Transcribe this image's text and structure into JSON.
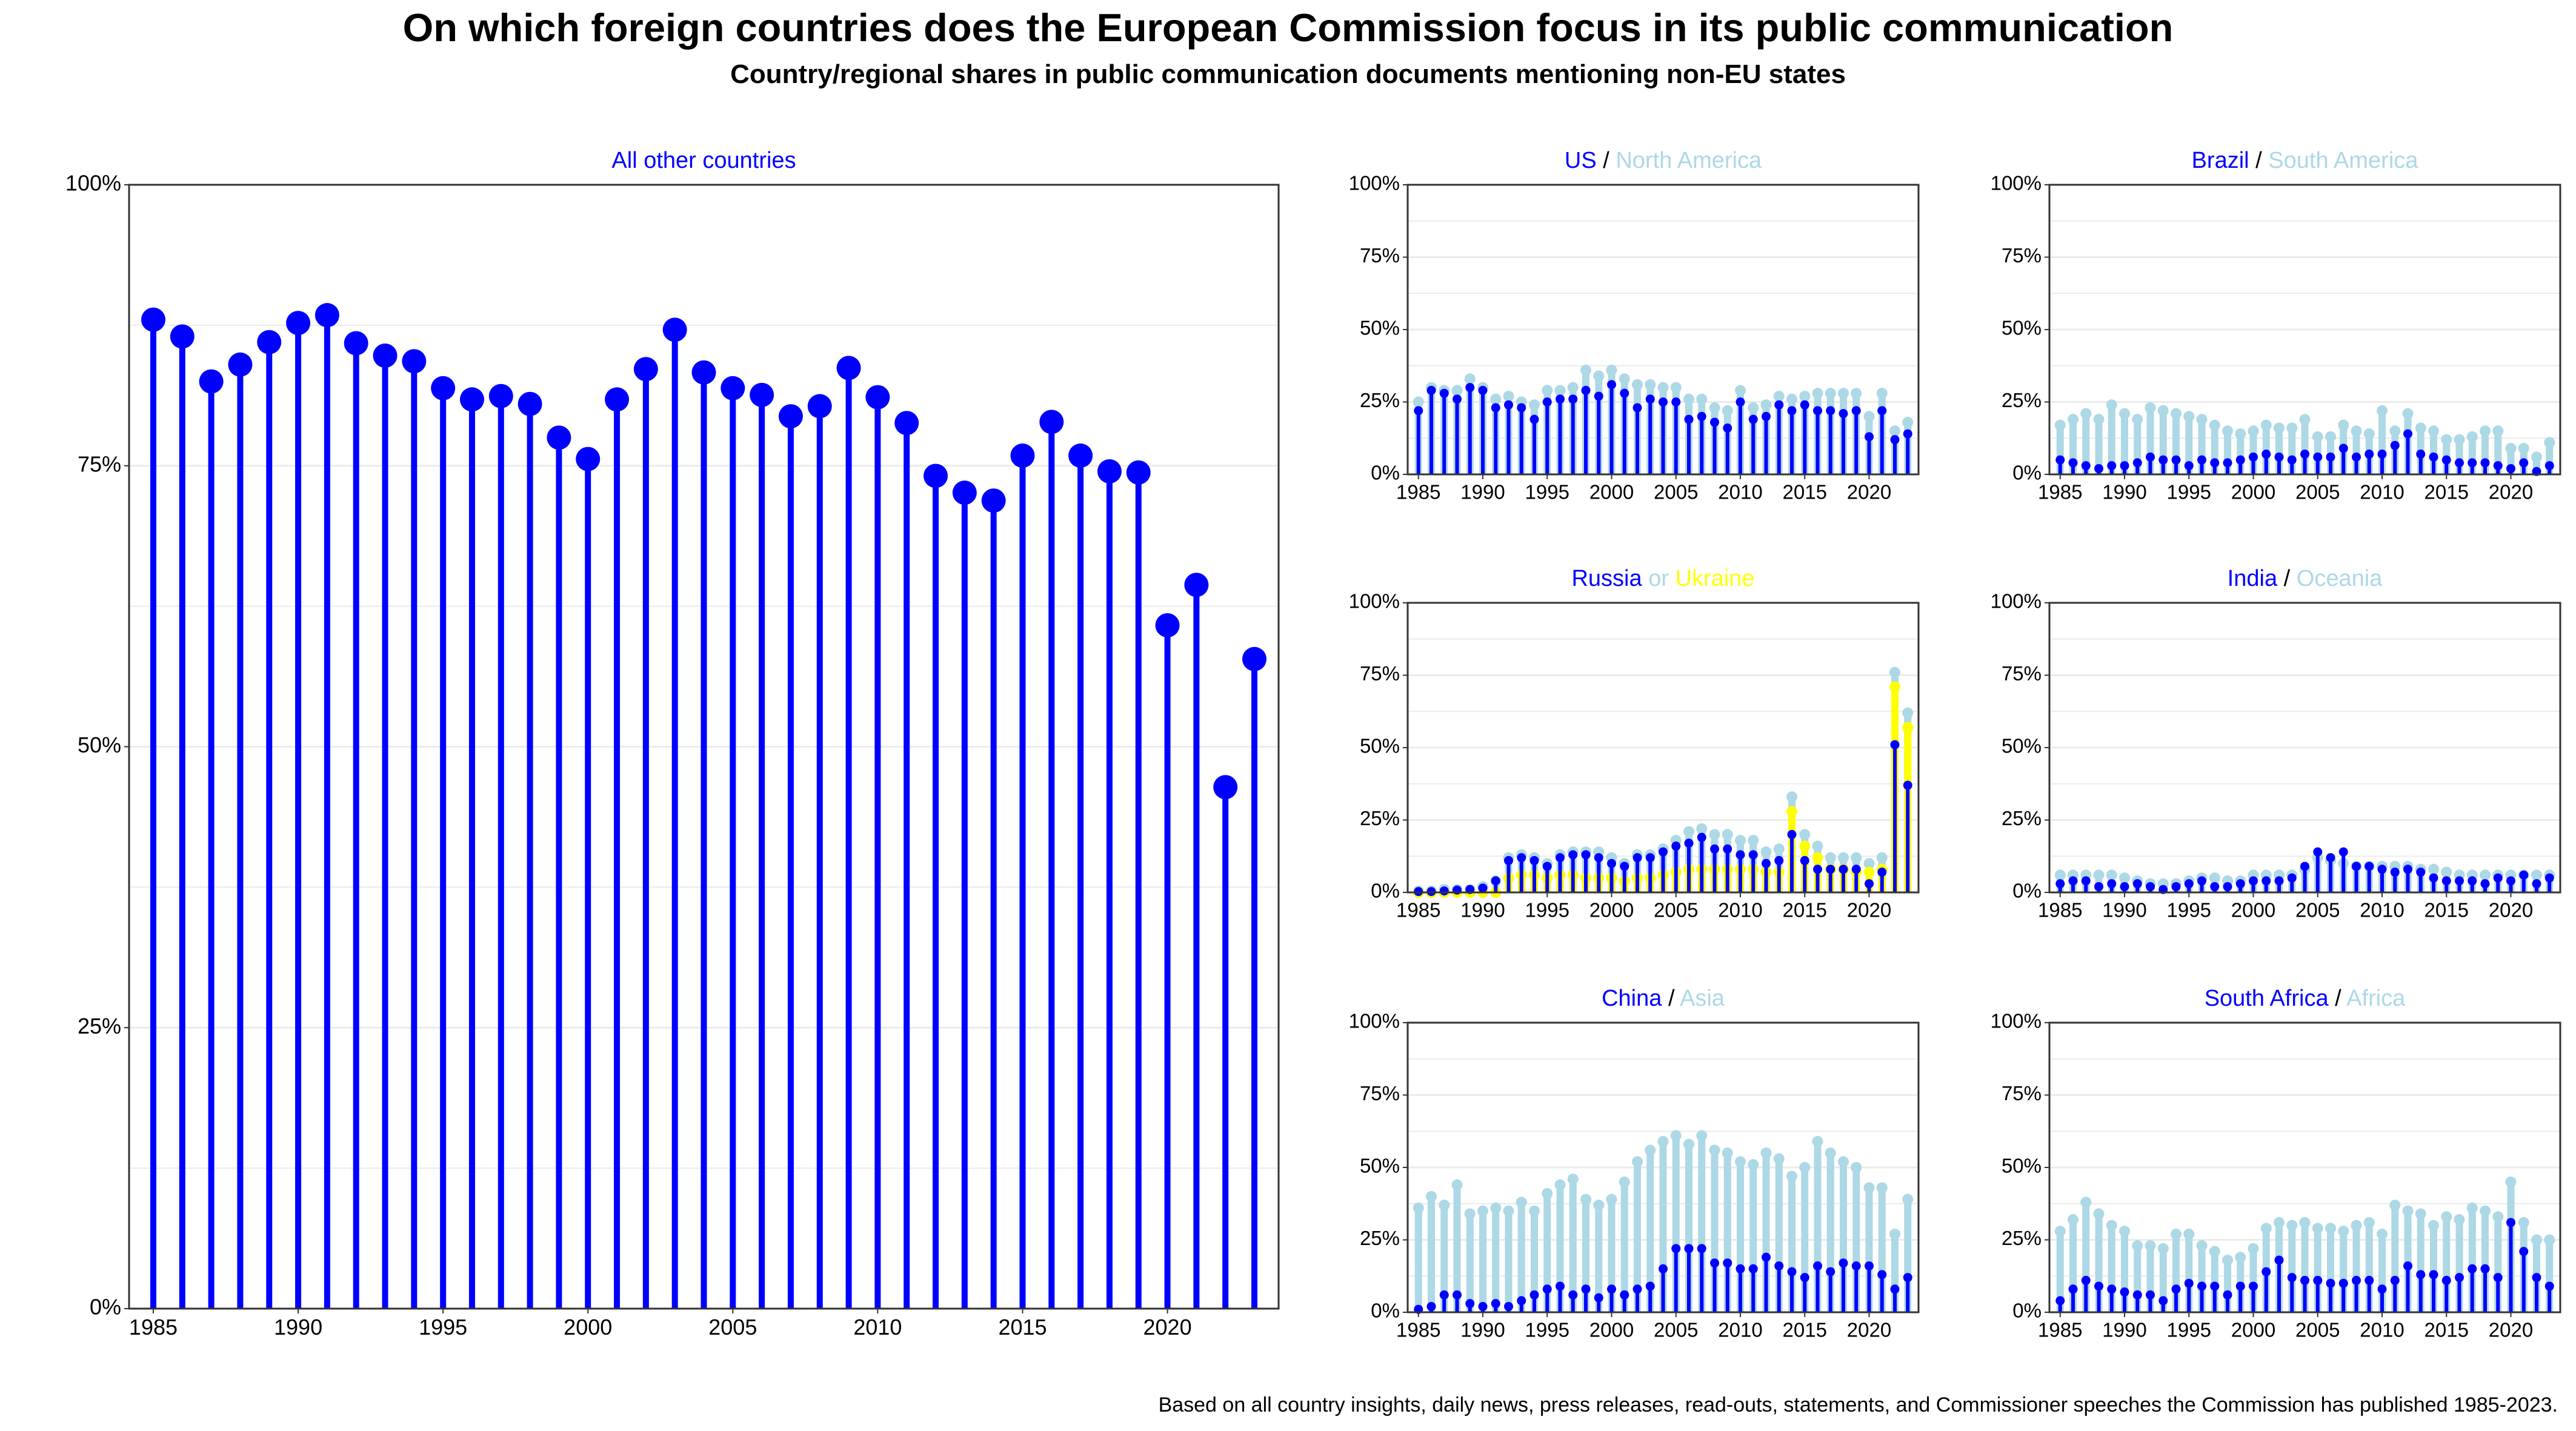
{
  "title": "On which foreign countries does the European Commission focus in its public communication",
  "subtitle": "Country/regional shares in public communication documents mentioning non-EU states",
  "caption": "Based on all country insights, daily news, press releases, read-outs, statements, and Commissioner speeches the Commission has published 1985-2023.",
  "colors": {
    "country": "#0000ff",
    "region": "#add8e6",
    "ukraine": "#ffff00",
    "grid": "#ebebeb",
    "frame": "#333333"
  },
  "chart_data": [
    {
      "type": "lollipop",
      "panel": "all-other",
      "title_parts": [
        {
          "text": "All other countries",
          "color": "#0000ff"
        }
      ],
      "x": [
        1985,
        1986,
        1987,
        1988,
        1989,
        1990,
        1991,
        1992,
        1993,
        1994,
        1995,
        1996,
        1997,
        1998,
        1999,
        2000,
        2001,
        2002,
        2003,
        2004,
        2005,
        2006,
        2007,
        2008,
        2009,
        2010,
        2011,
        2012,
        2013,
        2014,
        2015,
        2016,
        2017,
        2018,
        2019,
        2020,
        2021,
        2022,
        2023
      ],
      "x_ticks": [
        1985,
        1990,
        1995,
        2000,
        2005,
        2010,
        2015,
        2020
      ],
      "y_ticks": [
        0,
        25,
        50,
        75,
        100
      ],
      "y_tick_labels": [
        "0%",
        "25%",
        "50%",
        "75%",
        "100%"
      ],
      "ylim": [
        0,
        100
      ],
      "series": [
        {
          "name": "All other countries",
          "color": "#0000ff",
          "values": [
            88,
            86.5,
            82.5,
            84,
            86,
            87.7,
            88.4,
            85.9,
            84.8,
            84.3,
            81.9,
            80.9,
            81.2,
            80.5,
            77.5,
            75.6,
            80.9,
            83.6,
            87.1,
            83.3,
            81.9,
            81.3,
            79.4,
            80.3,
            83.7,
            81.1,
            78.8,
            74.1,
            72.6,
            71.9,
            75.9,
            78.9,
            75.9,
            74.5,
            74.4,
            60.8,
            64.4,
            46.4,
            57.8
          ]
        }
      ]
    },
    {
      "type": "lollipop",
      "panel": "us-north-america",
      "title_parts": [
        {
          "text": "US",
          "color": "#0000ff"
        },
        {
          "text": " / ",
          "color": "#000000"
        },
        {
          "text": "North America",
          "color": "#add8e6"
        }
      ],
      "x": [
        1985,
        1986,
        1987,
        1988,
        1989,
        1990,
        1991,
        1992,
        1993,
        1994,
        1995,
        1996,
        1997,
        1998,
        1999,
        2000,
        2001,
        2002,
        2003,
        2004,
        2005,
        2006,
        2007,
        2008,
        2009,
        2010,
        2011,
        2012,
        2013,
        2014,
        2015,
        2016,
        2017,
        2018,
        2019,
        2020,
        2021,
        2022,
        2023
      ],
      "x_ticks": [
        1985,
        1990,
        1995,
        2000,
        2005,
        2010,
        2015,
        2020
      ],
      "y_ticks": [
        0,
        25,
        50,
        75,
        100
      ],
      "y_tick_labels": [
        "0%",
        "25%",
        "50%",
        "75%",
        "100%"
      ],
      "ylim": [
        0,
        100
      ],
      "series": [
        {
          "name": "North America",
          "color": "#add8e6",
          "values": [
            25,
            30,
            29,
            29,
            33,
            30,
            26,
            27,
            25,
            24,
            29,
            29,
            30,
            36,
            34,
            36,
            33,
            31,
            31,
            30,
            30,
            26,
            26,
            23,
            22,
            29,
            23,
            24,
            27,
            26,
            27,
            28,
            28,
            28,
            28,
            20,
            28,
            15,
            18
          ]
        },
        {
          "name": "US",
          "color": "#0000ff",
          "values": [
            22,
            29,
            28,
            26,
            30,
            29,
            23,
            24,
            23,
            19,
            25,
            26,
            26,
            29,
            27,
            31,
            28,
            23,
            26,
            25,
            25,
            19,
            20,
            18,
            16,
            25,
            19,
            20,
            24,
            22,
            24,
            22,
            22,
            21,
            22,
            13,
            22,
            12,
            14
          ]
        }
      ]
    },
    {
      "type": "lollipop",
      "panel": "brazil-south-america",
      "title_parts": [
        {
          "text": "Brazil",
          "color": "#0000ff"
        },
        {
          "text": " / ",
          "color": "#000000"
        },
        {
          "text": "South America",
          "color": "#add8e6"
        }
      ],
      "x": [
        1985,
        1986,
        1987,
        1988,
        1989,
        1990,
        1991,
        1992,
        1993,
        1994,
        1995,
        1996,
        1997,
        1998,
        1999,
        2000,
        2001,
        2002,
        2003,
        2004,
        2005,
        2006,
        2007,
        2008,
        2009,
        2010,
        2011,
        2012,
        2013,
        2014,
        2015,
        2016,
        2017,
        2018,
        2019,
        2020,
        2021,
        2022,
        2023
      ],
      "x_ticks": [
        1985,
        1990,
        1995,
        2000,
        2005,
        2010,
        2015,
        2020
      ],
      "y_ticks": [
        0,
        25,
        50,
        75,
        100
      ],
      "y_tick_labels": [
        "0%",
        "25%",
        "50%",
        "75%",
        "100%"
      ],
      "ylim": [
        0,
        100
      ],
      "series": [
        {
          "name": "South America",
          "color": "#add8e6",
          "values": [
            17,
            19,
            21,
            19,
            24,
            21,
            19,
            23,
            22,
            21,
            20,
            19,
            17,
            15,
            14,
            15,
            17,
            16,
            16,
            19,
            13,
            13,
            17,
            15,
            14,
            22,
            15,
            21,
            16,
            15,
            12,
            12,
            13,
            15,
            15,
            9,
            9,
            6,
            11
          ]
        },
        {
          "name": "Brazil",
          "color": "#0000ff",
          "values": [
            5,
            4,
            3,
            2,
            3,
            3,
            4,
            6,
            5,
            5,
            3,
            5,
            4,
            4,
            5,
            6,
            7,
            6,
            5,
            7,
            6,
            6,
            9,
            6,
            7,
            7,
            10,
            14,
            7,
            6,
            5,
            4,
            4,
            4,
            3,
            2,
            4,
            1,
            3
          ]
        }
      ]
    },
    {
      "type": "lollipop",
      "panel": "russia-ukraine",
      "title_parts": [
        {
          "text": "Russia",
          "color": "#0000ff"
        },
        {
          "text": "  or  ",
          "color": "#add8e6"
        },
        {
          "text": "Ukraine",
          "color": "#ffff00"
        }
      ],
      "x": [
        1985,
        1986,
        1987,
        1988,
        1989,
        1990,
        1991,
        1992,
        1993,
        1994,
        1995,
        1996,
        1997,
        1998,
        1999,
        2000,
        2001,
        2002,
        2003,
        2004,
        2005,
        2006,
        2007,
        2008,
        2009,
        2010,
        2011,
        2012,
        2013,
        2014,
        2015,
        2016,
        2017,
        2018,
        2019,
        2020,
        2021,
        2022,
        2023
      ],
      "x_ticks": [
        1985,
        1990,
        1995,
        2000,
        2005,
        2010,
        2015,
        2020
      ],
      "y_ticks": [
        0,
        25,
        50,
        75,
        100
      ],
      "y_tick_labels": [
        "0%",
        "25%",
        "50%",
        "75%",
        "100%"
      ],
      "ylim": [
        0,
        100
      ],
      "series": [
        {
          "name": "Russia or Ukraine",
          "color": "#add8e6",
          "values": [
            0.5,
            0.5,
            1,
            1,
            1,
            2,
            4,
            12,
            13,
            12,
            10,
            13,
            14,
            14,
            14,
            12,
            10,
            13,
            13,
            15,
            18,
            21,
            22,
            20,
            20,
            18,
            18,
            14,
            15,
            33,
            20,
            16,
            12,
            12,
            12,
            10,
            12,
            76,
            62
          ]
        },
        {
          "name": "Ukraine",
          "color": "#ffff00",
          "values": [
            0,
            0,
            0,
            0,
            0,
            0,
            0,
            5,
            6,
            6,
            5,
            6,
            6,
            5,
            5,
            5,
            4,
            5,
            5,
            6,
            7,
            8,
            8,
            8,
            8,
            8,
            8,
            7,
            7,
            28,
            16,
            12,
            8,
            8,
            7,
            7,
            8,
            71,
            57
          ]
        },
        {
          "name": "Russia",
          "color": "#0000ff",
          "values": [
            0.3,
            0.3,
            0.5,
            0.8,
            1,
            1.5,
            4,
            11,
            12,
            11,
            9,
            12,
            13,
            13,
            12,
            10,
            9,
            12,
            12,
            14,
            16,
            17,
            19,
            15,
            15,
            13,
            13,
            10,
            11,
            20,
            11,
            8,
            8,
            8,
            8,
            3,
            7,
            51,
            37
          ]
        }
      ]
    },
    {
      "type": "lollipop",
      "panel": "india-oceania",
      "title_parts": [
        {
          "text": "India",
          "color": "#0000ff"
        },
        {
          "text": " / ",
          "color": "#000000"
        },
        {
          "text": "Oceania",
          "color": "#add8e6"
        }
      ],
      "x": [
        1985,
        1986,
        1987,
        1988,
        1989,
        1990,
        1991,
        1992,
        1993,
        1994,
        1995,
        1996,
        1997,
        1998,
        1999,
        2000,
        2001,
        2002,
        2003,
        2004,
        2005,
        2006,
        2007,
        2008,
        2009,
        2010,
        2011,
        2012,
        2013,
        2014,
        2015,
        2016,
        2017,
        2018,
        2019,
        2020,
        2021,
        2022,
        2023
      ],
      "x_ticks": [
        1985,
        1990,
        1995,
        2000,
        2005,
        2010,
        2015,
        2020
      ],
      "y_ticks": [
        0,
        25,
        50,
        75,
        100
      ],
      "y_tick_labels": [
        "0%",
        "25%",
        "50%",
        "75%",
        "100%"
      ],
      "ylim": [
        0,
        100
      ],
      "series": [
        {
          "name": "Oceania",
          "color": "#add8e6",
          "values": [
            6,
            6,
            6,
            6,
            6,
            5,
            4,
            3,
            3,
            3,
            4,
            5,
            5,
            4,
            4,
            6,
            6,
            6,
            6,
            8,
            12,
            11,
            10,
            9,
            9,
            9,
            9,
            9,
            8,
            8,
            7,
            6,
            6,
            6,
            6,
            6,
            6,
            6,
            6
          ]
        },
        {
          "name": "India",
          "color": "#0000ff",
          "values": [
            3,
            4,
            4,
            2,
            3,
            2,
            3,
            2,
            1,
            2,
            3,
            4,
            2,
            2,
            3,
            4,
            4,
            4,
            5,
            9,
            14,
            12,
            14,
            9,
            9,
            8,
            7,
            8,
            7,
            5,
            4,
            4,
            4,
            3,
            5,
            4,
            6,
            3,
            5
          ]
        }
      ]
    },
    {
      "type": "lollipop",
      "panel": "china-asia",
      "title_parts": [
        {
          "text": "China",
          "color": "#0000ff"
        },
        {
          "text": " / ",
          "color": "#000000"
        },
        {
          "text": "Asia",
          "color": "#add8e6"
        }
      ],
      "x": [
        1985,
        1986,
        1987,
        1988,
        1989,
        1990,
        1991,
        1992,
        1993,
        1994,
        1995,
        1996,
        1997,
        1998,
        1999,
        2000,
        2001,
        2002,
        2003,
        2004,
        2005,
        2006,
        2007,
        2008,
        2009,
        2010,
        2011,
        2012,
        2013,
        2014,
        2015,
        2016,
        2017,
        2018,
        2019,
        2020,
        2021,
        2022,
        2023
      ],
      "x_ticks": [
        1985,
        1990,
        1995,
        2000,
        2005,
        2010,
        2015,
        2020
      ],
      "y_ticks": [
        0,
        25,
        50,
        75,
        100
      ],
      "y_tick_labels": [
        "0%",
        "25%",
        "50%",
        "75%",
        "100%"
      ],
      "ylim": [
        0,
        100
      ],
      "series": [
        {
          "name": "Asia",
          "color": "#add8e6",
          "values": [
            36,
            40,
            37,
            44,
            34,
            35,
            36,
            35,
            38,
            35,
            41,
            44,
            46,
            39,
            37,
            39,
            45,
            52,
            56,
            59,
            61,
            58,
            61,
            56,
            55,
            52,
            51,
            55,
            53,
            47,
            50,
            59,
            55,
            52,
            50,
            43,
            43,
            27,
            39
          ]
        },
        {
          "name": "China",
          "color": "#0000ff",
          "values": [
            1,
            2,
            6,
            6,
            3,
            2,
            3,
            2,
            4,
            6,
            8,
            9,
            6,
            8,
            5,
            8,
            6,
            8,
            9,
            15,
            22,
            22,
            22,
            17,
            17,
            15,
            15,
            19,
            16,
            14,
            12,
            16,
            14,
            17,
            16,
            16,
            13,
            8,
            12
          ]
        }
      ]
    },
    {
      "type": "lollipop",
      "panel": "south-africa-africa",
      "title_parts": [
        {
          "text": "South Africa",
          "color": "#0000ff"
        },
        {
          "text": " / ",
          "color": "#000000"
        },
        {
          "text": "Africa",
          "color": "#add8e6"
        }
      ],
      "x": [
        1985,
        1986,
        1987,
        1988,
        1989,
        1990,
        1991,
        1992,
        1993,
        1994,
        1995,
        1996,
        1997,
        1998,
        1999,
        2000,
        2001,
        2002,
        2003,
        2004,
        2005,
        2006,
        2007,
        2008,
        2009,
        2010,
        2011,
        2012,
        2013,
        2014,
        2015,
        2016,
        2017,
        2018,
        2019,
        2020,
        2021,
        2022,
        2023
      ],
      "x_ticks": [
        1985,
        1990,
        1995,
        2000,
        2005,
        2010,
        2015,
        2020
      ],
      "y_ticks": [
        0,
        25,
        50,
        75,
        100
      ],
      "y_tick_labels": [
        "0%",
        "25%",
        "50%",
        "75%",
        "100%"
      ],
      "ylim": [
        0,
        100
      ],
      "series": [
        {
          "name": "Africa",
          "color": "#add8e6",
          "values": [
            28,
            32,
            38,
            34,
            30,
            28,
            23,
            23,
            22,
            27,
            27,
            23,
            21,
            18,
            19,
            22,
            29,
            31,
            30,
            31,
            29,
            29,
            28,
            30,
            31,
            27,
            37,
            35,
            34,
            30,
            33,
            32,
            36,
            35,
            33,
            45,
            31,
            25,
            25
          ]
        },
        {
          "name": "South Africa",
          "color": "#0000ff",
          "values": [
            4,
            8,
            11,
            9,
            8,
            7,
            6,
            6,
            4,
            8,
            10,
            9,
            9,
            6,
            9,
            9,
            14,
            18,
            12,
            11,
            11,
            10,
            10,
            11,
            11,
            8,
            11,
            16,
            13,
            13,
            11,
            12,
            15,
            15,
            12,
            31,
            21,
            12,
            9
          ]
        }
      ]
    }
  ]
}
